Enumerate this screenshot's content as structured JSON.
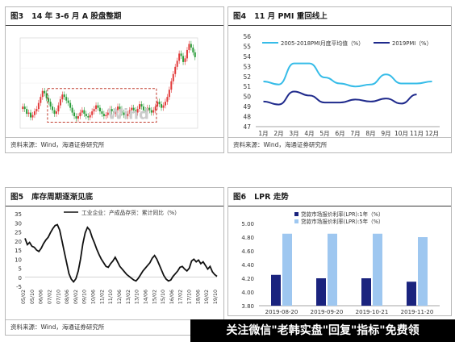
{
  "panels": {
    "p3": {
      "num": "图3",
      "title": "14 年 3-6 月 A 股盘整期",
      "source": "资料来源：Wind，海通证券研究所",
      "overlay_text": "Wind"
    },
    "p4": {
      "num": "图4",
      "title": "11 月 PMI 重回线上",
      "source": "资料来源：Wind，海通证券研究所"
    },
    "p5": {
      "num": "图5",
      "title": "库存周期逐渐见底",
      "source": "资料来源：Wind，海通证券研究所"
    },
    "p6": {
      "num": "图6",
      "title": "LPR 走势",
      "source": ""
    }
  },
  "watermark": "关注微信\"老韩实盘\"回复\"指标\"免费领",
  "colors": {
    "pmi_avg": "#36bce8",
    "pmi_2019": "#1f2a8c",
    "inventory": "#111111",
    "lpr_1y": "#1a237e",
    "lpr_5y": "#9ec7f0",
    "candle_up": "#e23b3b",
    "candle_down": "#2a9d3a",
    "box": "#c0392b"
  },
  "chart_data": [
    {
      "type": "candlestick",
      "id": "p3",
      "title": "14 年 3-6 月 A 股盘整期",
      "series_shape": [
        2.08,
        2.06,
        2.02,
        2.03,
        1.99,
        2.01,
        2.04,
        2.06,
        2.11,
        2.16,
        2.21,
        2.19,
        2.15,
        2.12,
        2.08,
        2.05,
        2.02,
        2.04,
        2.09,
        2.14,
        2.18,
        2.16,
        2.13,
        2.11,
        2.07,
        2.03,
        2.0,
        1.98,
        2.0,
        2.03,
        2.05,
        2.02,
        2.0,
        1.99,
        2.01,
        2.04,
        2.06,
        2.09,
        2.07,
        2.04,
        2.02,
        2.0,
        2.01,
        2.03,
        2.06,
        2.04,
        2.02,
        2.05,
        2.08,
        2.06,
        2.03,
        2.01,
        2.0,
        2.02,
        2.05,
        2.07,
        2.05,
        2.03,
        2.06,
        2.1,
        2.08,
        2.05,
        2.04,
        2.07,
        2.05,
        2.03,
        2.05,
        2.08,
        2.12,
        2.1,
        2.07,
        2.09,
        2.12,
        2.16,
        2.22,
        2.29,
        2.35,
        2.41,
        2.46,
        2.52,
        2.5,
        2.45,
        2.48,
        2.55,
        2.6,
        2.57,
        2.53,
        2.49
      ]
    },
    {
      "type": "line",
      "id": "p4",
      "title": "11 月 PMI 重回线上",
      "categories": [
        "1月",
        "2月",
        "3月",
        "4月",
        "5月",
        "6月",
        "7月",
        "8月",
        "9月",
        "10月",
        "11月",
        "12月"
      ],
      "series": [
        {
          "name": "2005-2018PMI月度平均值（%）",
          "values": [
            51.5,
            51.2,
            53.3,
            53.3,
            51.9,
            51.3,
            51.0,
            51.2,
            52.2,
            51.3,
            51.3,
            51.5
          ]
        },
        {
          "name": "2019PMI（%）",
          "values": [
            49.5,
            49.2,
            50.5,
            50.1,
            49.4,
            49.4,
            49.7,
            49.5,
            49.8,
            49.3,
            50.2,
            null
          ]
        }
      ],
      "ylim": [
        47,
        56
      ],
      "yticks": [
        47,
        48,
        49,
        50,
        51,
        52,
        53,
        54,
        55,
        56
      ],
      "legend": "top"
    },
    {
      "type": "line",
      "id": "p5",
      "title": "库存周期逐渐见底",
      "x_tick_labels": [
        "05/02",
        "05/10",
        "06/06",
        "07/02",
        "07/10",
        "08/06",
        "09/02",
        "09/10",
        "10/06",
        "11/02",
        "11/10",
        "12/06",
        "13/02",
        "13/10",
        "14/06",
        "15/02",
        "15/10",
        "16/06",
        "17/02",
        "17/10",
        "18/06",
        "19/02",
        "19/10"
      ],
      "series": [
        {
          "name": "工业企业：产成品存货：累计同比（%）",
          "values": [
            21.5,
            18.0,
            19.2,
            17.1,
            16.5,
            15.0,
            14.2,
            16.0,
            18.5,
            20.5,
            22.0,
            24.5,
            26.8,
            28.5,
            29.0,
            26.0,
            20.0,
            14.0,
            8.0,
            2.0,
            -1.0,
            -2.5,
            -0.8,
            3.5,
            10.0,
            18.5,
            24.5,
            27.5,
            26.0,
            22.0,
            19.0,
            15.5,
            12.5,
            10.0,
            8.0,
            6.0,
            5.5,
            7.5,
            9.0,
            11.0,
            8.5,
            6.0,
            4.5,
            3.0,
            1.5,
            0.5,
            -0.5,
            -1.5,
            -2.0,
            -0.5,
            1.5,
            3.5,
            5.0,
            6.5,
            8.0,
            10.5,
            12.0,
            10.0,
            7.0,
            4.0,
            1.0,
            -1.0,
            -2.0,
            -1.5,
            0.5,
            2.0,
            3.5,
            5.5,
            6.0,
            4.5,
            3.5,
            5.0,
            9.0,
            10.0,
            8.5,
            9.5,
            7.5,
            8.5,
            6.5,
            4.5,
            6.0,
            3.0,
            1.5,
            0.5
          ]
        }
      ],
      "ylim": [
        -5,
        35
      ],
      "yticks": [
        -5,
        0,
        5,
        10,
        15,
        20,
        25,
        30,
        35
      ],
      "legend": "top"
    },
    {
      "type": "bar",
      "id": "p6",
      "title": "LPR 走势",
      "categories": [
        "2019-08-20",
        "2019-09-20",
        "2019-10-21",
        "2019-11-20"
      ],
      "series": [
        {
          "name": "贷款市场报价利率(LPR):1年（%）",
          "values": [
            4.25,
            4.2,
            4.2,
            4.15
          ]
        },
        {
          "name": "贷款市场报价利率(LPR):5年（%）",
          "values": [
            4.85,
            4.85,
            4.85,
            4.8
          ]
        }
      ],
      "ylim": [
        3.8,
        5.0
      ],
      "yticks": [
        "3.80",
        "4.00",
        "4.20",
        "4.40",
        "4.60",
        "4.80",
        "5.00"
      ],
      "legend": "top"
    }
  ]
}
